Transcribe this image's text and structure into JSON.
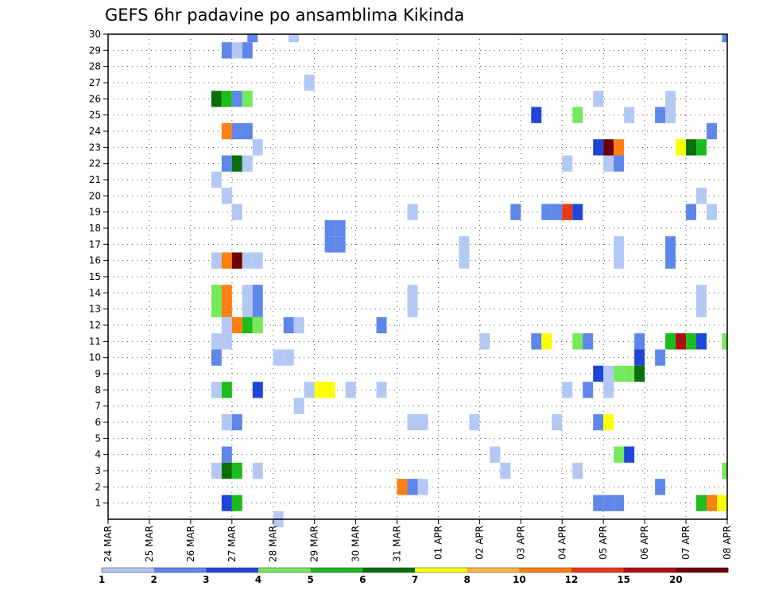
{
  "chart_data": {
    "type": "heatmap",
    "title": "GEFS 6hr padavine po ansamblima Kikinda",
    "xlabel": "",
    "ylabel": "",
    "x_tick_labels": [
      "24 MAR",
      "25 MAR",
      "26 MAR",
      "27 MAR",
      "28 MAR",
      "29 MAR",
      "30 MAR",
      "31 MAR",
      "01 APR",
      "02 APR",
      "03 APR",
      "04 APR",
      "05 APR",
      "06 APR",
      "07 APR",
      "08 APR"
    ],
    "x_range_days": [
      0,
      15
    ],
    "x_unit": "days since 24 MAR 00Z",
    "y_tick_labels": [
      "1",
      "2",
      "3",
      "4",
      "5",
      "6",
      "7",
      "8",
      "9",
      "10",
      "11",
      "12",
      "13",
      "14",
      "15",
      "16",
      "17",
      "18",
      "19",
      "20",
      "21",
      "22",
      "23",
      "24",
      "25",
      "26",
      "27",
      "28",
      "29",
      "30"
    ],
    "y_range_members": [
      0,
      30
    ],
    "grid": true,
    "legend": {
      "placement": "bottom",
      "labels": [
        "1",
        "2",
        "3",
        "4",
        "5",
        "6",
        "7",
        "8",
        "10",
        "12",
        "15",
        "20"
      ],
      "colors": [
        "#b4c8f5",
        "#5f87ea",
        "#1f46d8",
        "#76e85c",
        "#1cbc1c",
        "#0a6e0a",
        "#ffff00",
        "#ffb444",
        "#ff7f10",
        "#e83a14",
        "#b00e0e",
        "#6e0000"
      ]
    },
    "cells": [
      {
        "member": 30,
        "day": 3.5,
        "level": 2
      },
      {
        "member": 30,
        "day": 4.5,
        "level": 1
      },
      {
        "member": 30,
        "day": 15.0,
        "level": 2
      },
      {
        "member": 29,
        "day": 2.875,
        "level": 2
      },
      {
        "member": 29,
        "day": 3.125,
        "level": 1
      },
      {
        "member": 29,
        "day": 3.375,
        "level": 2
      },
      {
        "member": 27,
        "day": 4.875,
        "level": 1
      },
      {
        "member": 26,
        "day": 2.625,
        "level": 6
      },
      {
        "member": 26,
        "day": 2.875,
        "level": 5
      },
      {
        "member": 26,
        "day": 3.125,
        "level": 2
      },
      {
        "member": 26,
        "day": 3.375,
        "level": 4
      },
      {
        "member": 26,
        "day": 11.875,
        "level": 1
      },
      {
        "member": 26,
        "day": 13.625,
        "level": 1
      },
      {
        "member": 25,
        "day": 10.375,
        "level": 3
      },
      {
        "member": 25,
        "day": 11.375,
        "level": 4
      },
      {
        "member": 25,
        "day": 12.625,
        "level": 1
      },
      {
        "member": 25,
        "day": 13.375,
        "level": 2
      },
      {
        "member": 25,
        "day": 13.625,
        "level": 1
      },
      {
        "member": 24,
        "day": 2.875,
        "level": 9
      },
      {
        "member": 24,
        "day": 3.125,
        "level": 2
      },
      {
        "member": 24,
        "day": 3.375,
        "level": 2
      },
      {
        "member": 24,
        "day": 14.625,
        "level": 2
      },
      {
        "member": 23,
        "day": 3.625,
        "level": 1
      },
      {
        "member": 23,
        "day": 11.875,
        "level": 3
      },
      {
        "member": 23,
        "day": 12.125,
        "level": 12
      },
      {
        "member": 23,
        "day": 12.375,
        "level": 9
      },
      {
        "member": 23,
        "day": 13.875,
        "level": 7
      },
      {
        "member": 23,
        "day": 14.125,
        "level": 6
      },
      {
        "member": 23,
        "day": 14.375,
        "level": 5
      },
      {
        "member": 22,
        "day": 2.875,
        "level": 2
      },
      {
        "member": 22,
        "day": 3.125,
        "level": 6
      },
      {
        "member": 22,
        "day": 3.375,
        "level": 1
      },
      {
        "member": 22,
        "day": 11.125,
        "level": 1
      },
      {
        "member": 22,
        "day": 12.125,
        "level": 1
      },
      {
        "member": 22,
        "day": 12.375,
        "level": 2
      },
      {
        "member": 21,
        "day": 2.625,
        "level": 1
      },
      {
        "member": 20,
        "day": 2.875,
        "level": 1
      },
      {
        "member": 20,
        "day": 14.375,
        "level": 1
      },
      {
        "member": 19,
        "day": 3.125,
        "level": 1
      },
      {
        "member": 19,
        "day": 7.375,
        "level": 1
      },
      {
        "member": 19,
        "day": 9.875,
        "level": 2
      },
      {
        "member": 19,
        "day": 10.625,
        "level": 2
      },
      {
        "member": 19,
        "day": 10.875,
        "level": 2
      },
      {
        "member": 19,
        "day": 11.125,
        "level": 10
      },
      {
        "member": 19,
        "day": 11.375,
        "level": 3
      },
      {
        "member": 19,
        "day": 14.125,
        "level": 2
      },
      {
        "member": 19,
        "day": 14.625,
        "level": 1
      },
      {
        "member": 18,
        "day": 5.375,
        "level": 2
      },
      {
        "member": 18,
        "day": 5.625,
        "level": 2
      },
      {
        "member": 17,
        "day": 5.375,
        "level": 2
      },
      {
        "member": 17,
        "day": 5.625,
        "level": 2
      },
      {
        "member": 17,
        "day": 8.625,
        "level": 1
      },
      {
        "member": 17,
        "day": 12.375,
        "level": 1
      },
      {
        "member": 17,
        "day": 13.625,
        "level": 2
      },
      {
        "member": 16,
        "day": 2.625,
        "level": 1
      },
      {
        "member": 16,
        "day": 2.875,
        "level": 9
      },
      {
        "member": 16,
        "day": 3.125,
        "level": 12
      },
      {
        "member": 16,
        "day": 3.375,
        "level": 1
      },
      {
        "member": 16,
        "day": 3.625,
        "level": 1
      },
      {
        "member": 16,
        "day": 8.625,
        "level": 1
      },
      {
        "member": 16,
        "day": 12.375,
        "level": 1
      },
      {
        "member": 16,
        "day": 13.625,
        "level": 2
      },
      {
        "member": 14,
        "day": 2.625,
        "level": 4
      },
      {
        "member": 14,
        "day": 2.875,
        "level": 9
      },
      {
        "member": 14,
        "day": 3.375,
        "level": 1
      },
      {
        "member": 14,
        "day": 3.625,
        "level": 2
      },
      {
        "member": 14,
        "day": 7.375,
        "level": 1
      },
      {
        "member": 14,
        "day": 14.375,
        "level": 1
      },
      {
        "member": 13,
        "day": 2.625,
        "level": 4
      },
      {
        "member": 13,
        "day": 2.875,
        "level": 9
      },
      {
        "member": 13,
        "day": 3.375,
        "level": 1
      },
      {
        "member": 13,
        "day": 3.625,
        "level": 2
      },
      {
        "member": 13,
        "day": 7.375,
        "level": 1
      },
      {
        "member": 13,
        "day": 14.375,
        "level": 1
      },
      {
        "member": 12,
        "day": 2.875,
        "level": 1
      },
      {
        "member": 12,
        "day": 3.125,
        "level": 9
      },
      {
        "member": 12,
        "day": 3.375,
        "level": 5
      },
      {
        "member": 12,
        "day": 3.625,
        "level": 4
      },
      {
        "member": 12,
        "day": 4.375,
        "level": 2
      },
      {
        "member": 12,
        "day": 4.625,
        "level": 1
      },
      {
        "member": 12,
        "day": 6.625,
        "level": 2
      },
      {
        "member": 11,
        "day": 2.625,
        "level": 1
      },
      {
        "member": 11,
        "day": 2.875,
        "level": 1
      },
      {
        "member": 11,
        "day": 9.125,
        "level": 1
      },
      {
        "member": 11,
        "day": 10.375,
        "level": 2
      },
      {
        "member": 11,
        "day": 10.625,
        "level": 7
      },
      {
        "member": 11,
        "day": 11.375,
        "level": 4
      },
      {
        "member": 11,
        "day": 11.625,
        "level": 2
      },
      {
        "member": 11,
        "day": 12.875,
        "level": 2
      },
      {
        "member": 11,
        "day": 13.625,
        "level": 5
      },
      {
        "member": 11,
        "day": 13.875,
        "level": 11
      },
      {
        "member": 11,
        "day": 14.125,
        "level": 5
      },
      {
        "member": 11,
        "day": 14.375,
        "level": 3
      },
      {
        "member": 11,
        "day": 15.0,
        "level": 4
      },
      {
        "member": 10,
        "day": 2.625,
        "level": 2
      },
      {
        "member": 10,
        "day": 4.125,
        "level": 1
      },
      {
        "member": 10,
        "day": 4.375,
        "level": 1
      },
      {
        "member": 10,
        "day": 12.875,
        "level": 3
      },
      {
        "member": 10,
        "day": 13.375,
        "level": 2
      },
      {
        "member": 9,
        "day": 11.875,
        "level": 3
      },
      {
        "member": 9,
        "day": 12.125,
        "level": 1
      },
      {
        "member": 9,
        "day": 12.375,
        "level": 4
      },
      {
        "member": 9,
        "day": 12.625,
        "level": 4
      },
      {
        "member": 9,
        "day": 12.875,
        "level": 6
      },
      {
        "member": 8,
        "day": 2.625,
        "level": 1
      },
      {
        "member": 8,
        "day": 2.875,
        "level": 5
      },
      {
        "member": 8,
        "day": 3.625,
        "level": 3
      },
      {
        "member": 8,
        "day": 4.875,
        "level": 1
      },
      {
        "member": 8,
        "day": 5.125,
        "level": 7
      },
      {
        "member": 8,
        "day": 5.375,
        "level": 7
      },
      {
        "member": 8,
        "day": 5.875,
        "level": 1
      },
      {
        "member": 8,
        "day": 6.625,
        "level": 1
      },
      {
        "member": 8,
        "day": 11.125,
        "level": 1
      },
      {
        "member": 8,
        "day": 11.625,
        "level": 2
      },
      {
        "member": 8,
        "day": 12.125,
        "level": 1
      },
      {
        "member": 7,
        "day": 4.625,
        "level": 1
      },
      {
        "member": 6,
        "day": 2.875,
        "level": 1
      },
      {
        "member": 6,
        "day": 3.125,
        "level": 2
      },
      {
        "member": 6,
        "day": 7.375,
        "level": 1
      },
      {
        "member": 6,
        "day": 7.625,
        "level": 1
      },
      {
        "member": 6,
        "day": 8.875,
        "level": 1
      },
      {
        "member": 6,
        "day": 10.875,
        "level": 1
      },
      {
        "member": 6,
        "day": 11.875,
        "level": 2
      },
      {
        "member": 6,
        "day": 12.125,
        "level": 7
      },
      {
        "member": 4,
        "day": 2.875,
        "level": 2
      },
      {
        "member": 4,
        "day": 9.375,
        "level": 1
      },
      {
        "member": 4,
        "day": 12.375,
        "level": 4
      },
      {
        "member": 4,
        "day": 12.625,
        "level": 3
      },
      {
        "member": 3,
        "day": 2.625,
        "level": 1
      },
      {
        "member": 3,
        "day": 2.875,
        "level": 6
      },
      {
        "member": 3,
        "day": 3.125,
        "level": 5
      },
      {
        "member": 3,
        "day": 3.625,
        "level": 1
      },
      {
        "member": 3,
        "day": 9.625,
        "level": 1
      },
      {
        "member": 3,
        "day": 11.375,
        "level": 1
      },
      {
        "member": 3,
        "day": 15.0,
        "level": 4
      },
      {
        "member": 2,
        "day": 7.125,
        "level": 9
      },
      {
        "member": 2,
        "day": 7.375,
        "level": 2
      },
      {
        "member": 2,
        "day": 7.625,
        "level": 1
      },
      {
        "member": 2,
        "day": 13.375,
        "level": 2
      },
      {
        "member": 1,
        "day": 2.875,
        "level": 3
      },
      {
        "member": 1,
        "day": 3.125,
        "level": 5
      },
      {
        "member": 1,
        "day": 11.875,
        "level": 2
      },
      {
        "member": 1,
        "day": 12.125,
        "level": 2
      },
      {
        "member": 1,
        "day": 12.375,
        "level": 2
      },
      {
        "member": 1,
        "day": 14.375,
        "level": 5
      },
      {
        "member": 1,
        "day": 14.625,
        "level": 9
      },
      {
        "member": 1,
        "day": 14.875,
        "level": 7
      },
      {
        "member": 0,
        "day": 4.125,
        "level": 1
      }
    ]
  }
}
